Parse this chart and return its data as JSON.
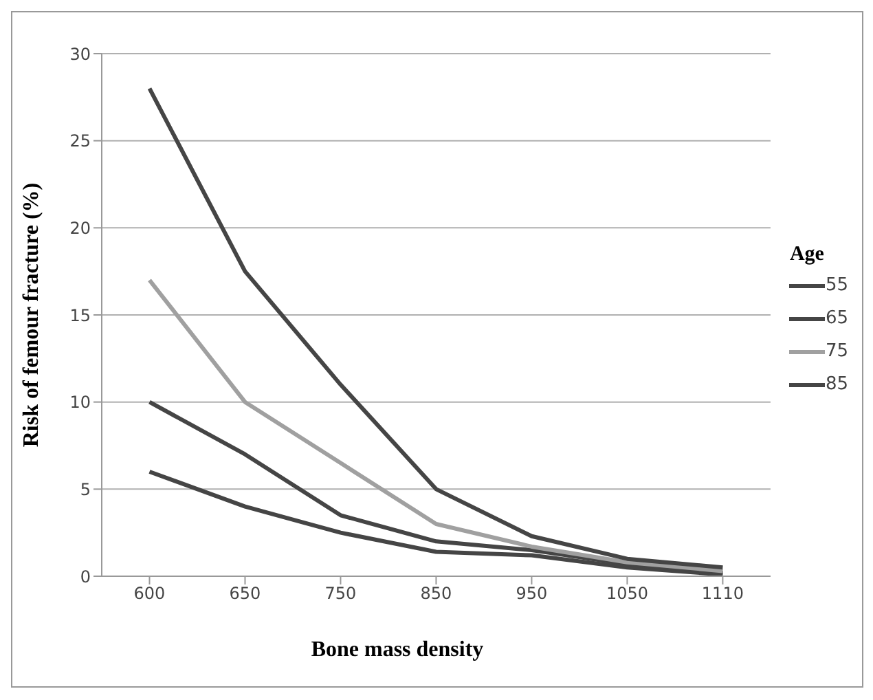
{
  "chart_data": {
    "type": "line",
    "xlabel": "Bone mass density",
    "ylabel": "Risk of femour fracture (%)",
    "legend_title": "Age",
    "categories": [
      "600",
      "650",
      "750",
      "850",
      "950",
      "1050",
      "1110"
    ],
    "series": [
      {
        "name": "55",
        "color": "#454545",
        "values": [
          6,
          4,
          2.5,
          1.4,
          1.2,
          0.5,
          0.1
        ]
      },
      {
        "name": "65",
        "color": "#454545",
        "values": [
          10,
          7,
          3.5,
          2,
          1.5,
          0.7,
          0.2
        ]
      },
      {
        "name": "75",
        "color": "#a0a0a0",
        "values": [
          17,
          10,
          6.5,
          3,
          1.7,
          0.8,
          0.3
        ]
      },
      {
        "name": "85",
        "color": "#454545",
        "values": [
          28,
          17.5,
          11,
          5,
          2.3,
          1,
          0.5
        ]
      }
    ],
    "ylim": [
      0,
      30
    ],
    "yticks": [
      0,
      5,
      10,
      15,
      20,
      25,
      30
    ],
    "grid": "y",
    "legend": "right",
    "marker": "none",
    "line_style": "solid"
  }
}
